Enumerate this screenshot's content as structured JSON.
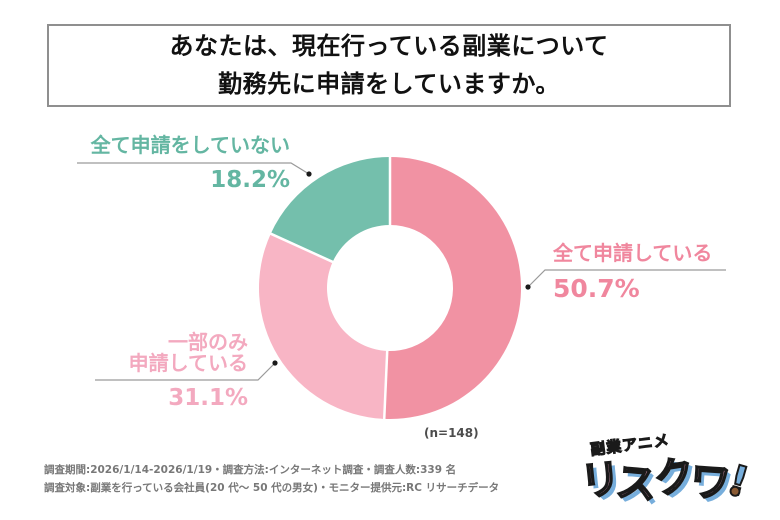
{
  "title": {
    "line1": "あなたは、現在行っている副業について",
    "line2": "勤務先に申請をしていますか。"
  },
  "chart_data": {
    "type": "pie",
    "subtype": "donut",
    "title": "あなたは、現在行っている副業について勤務先に申請をしていますか。",
    "n_label": "(n=148)",
    "start_angle_deg": 0,
    "direction": "clockwise",
    "donut_hole_ratio": 0.48,
    "segments": [
      {
        "label": "全て申請している",
        "value": 50.7,
        "value_label": "50.7%",
        "color": "#F192A3",
        "label_color": "#F0879E"
      },
      {
        "label": "一部のみ申請している",
        "label_line1": "一部のみ",
        "label_line2": "申請している",
        "value": 31.1,
        "value_label": "31.1%",
        "color": "#F8B5C5",
        "label_color": "#F3A9BF"
      },
      {
        "label": "全て申請をしていない",
        "value": 18.2,
        "value_label": "18.2%",
        "color": "#74BFAC",
        "label_color": "#64B6A2"
      }
    ]
  },
  "footer": {
    "line1": "調査期間:2026/1/14-2026/1/19・調査方法:インターネット調査・調査人数:339 名",
    "line2": "調査対象:副業を行っている会社員(20 代〜 50 代の男女)・モニター提供元:RC リサーチデータ"
  },
  "logo": {
    "tagline": "副業アニメ",
    "name": "リスクワ",
    "exclamation": "!"
  },
  "colors": {
    "leader_line": "#9a9a9a",
    "leader_dot": "#1a1a1a",
    "title_border": "#8f8f8f",
    "footer_text": "#787878"
  }
}
